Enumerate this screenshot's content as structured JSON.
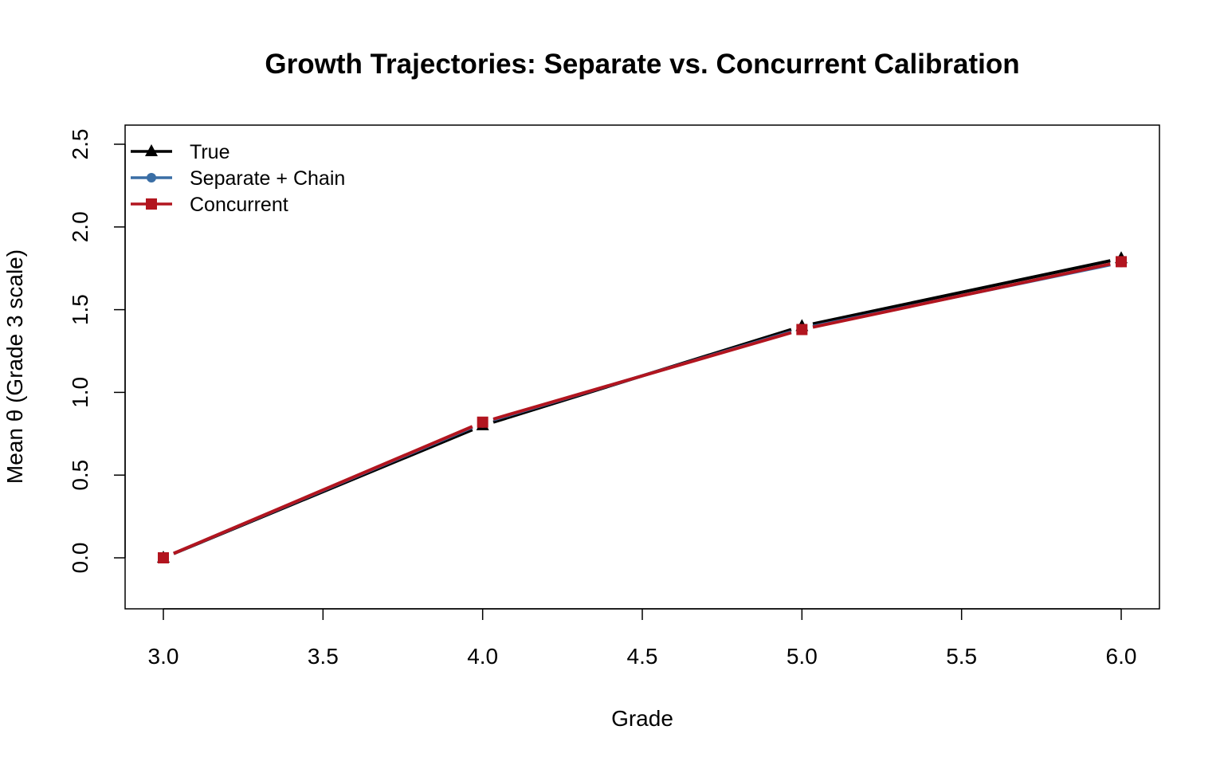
{
  "chart_data": {
    "type": "line",
    "title": "Growth Trajectories: Separate vs. Concurrent Calibration",
    "xlabel": "Grade",
    "ylabel": "Mean θ (Grade 3 scale)",
    "xlim": [
      2.88,
      6.12
    ],
    "ylim": [
      -0.31,
      2.62
    ],
    "xticks": [
      3.0,
      3.5,
      4.0,
      4.5,
      5.0,
      5.5,
      6.0
    ],
    "xtick_labels": [
      "3.0",
      "3.5",
      "4.0",
      "4.5",
      "5.0",
      "5.5",
      "6.0"
    ],
    "yticks": [
      0.0,
      0.5,
      1.0,
      1.5,
      2.0,
      2.5
    ],
    "ytick_labels": [
      "0.0",
      "0.5",
      "1.0",
      "1.5",
      "2.0",
      "2.5"
    ],
    "grid": false,
    "legend_position": "top-left",
    "x": [
      3,
      4,
      5,
      6
    ],
    "series": [
      {
        "name": "True",
        "color": "#000000",
        "marker": "triangle",
        "values": [
          0.0,
          0.8,
          1.4,
          1.81
        ]
      },
      {
        "name": "Separate + Chain",
        "color": "#3A6EA5",
        "marker": "circle",
        "values": [
          0.0,
          0.815,
          1.385,
          1.785
        ]
      },
      {
        "name": "Concurrent",
        "color": "#B2151F",
        "marker": "square",
        "values": [
          0.0,
          0.82,
          1.38,
          1.79
        ]
      }
    ]
  }
}
